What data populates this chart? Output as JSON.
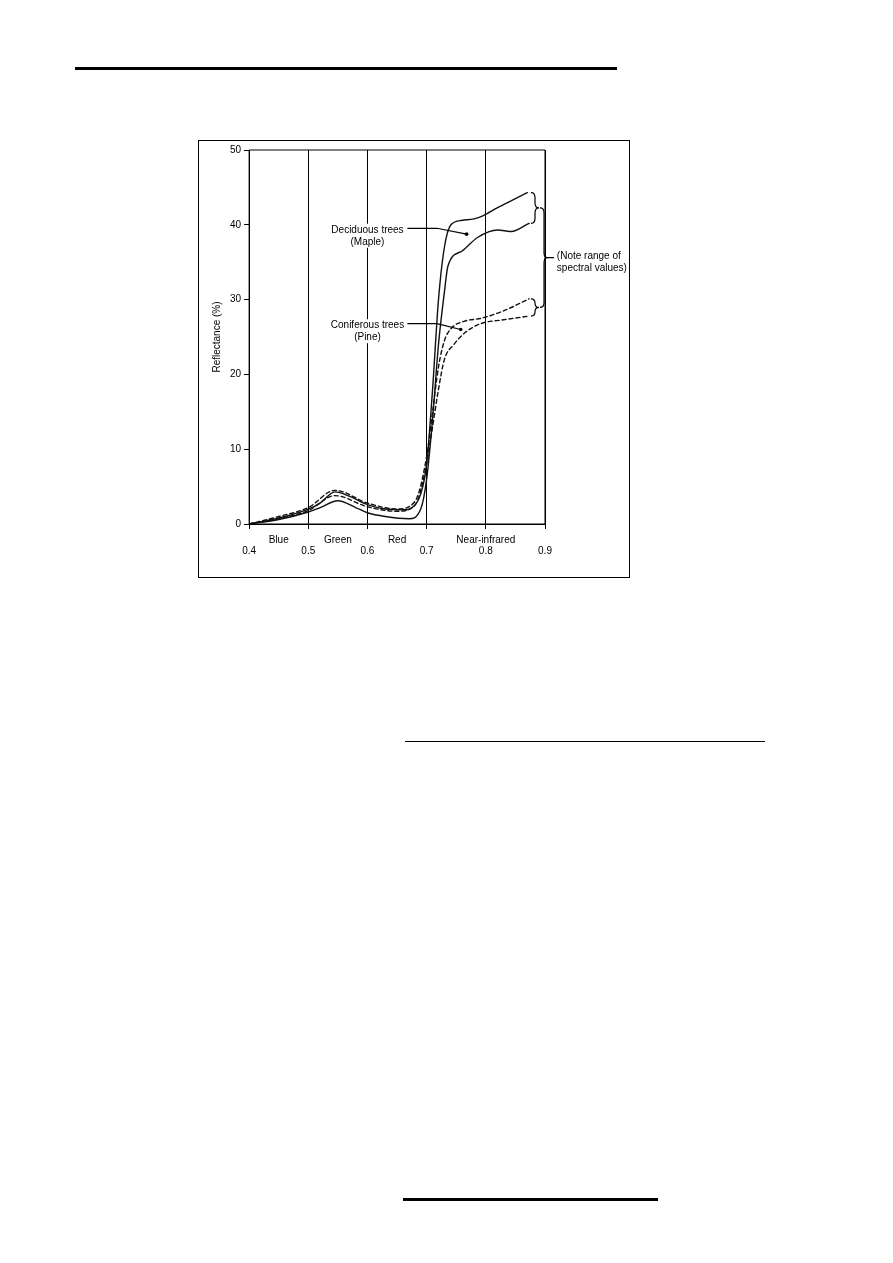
{
  "chart_data": {
    "type": "line",
    "ylabel": "Reflectance (%)",
    "xlim": [
      0.4,
      0.9
    ],
    "xticks": [
      0.4,
      0.5,
      0.6,
      0.7,
      0.8,
      0.9
    ],
    "ylim": [
      0,
      50
    ],
    "yticks": [
      0,
      10,
      20,
      30,
      40,
      50
    ],
    "grid": "x",
    "marker": "none",
    "annotations": [
      "Deciduous trees\n(Maple)",
      "Coniferous trees\n(Pine)",
      "(Note range of\nspectral values)",
      "Blue",
      "Green",
      "Red",
      "Near-infrared"
    ],
    "series": [
      {
        "color": "#111111",
        "line_style": "solid",
        "x": [
          0.4,
          0.45,
          0.5,
          0.52,
          0.545,
          0.57,
          0.6,
          0.63,
          0.66,
          0.68,
          0.69,
          0.7,
          0.71,
          0.72,
          0.73,
          0.741,
          0.76,
          0.78,
          0.795,
          0.82,
          0.845,
          0.87
        ],
        "values": [
          0,
          0.8,
          2,
          2.8,
          4.3,
          3.7,
          2.6,
          2,
          1.9,
          2.5,
          4,
          8,
          18,
          30,
          37,
          40,
          40.6,
          40.8,
          41.2,
          42.3,
          43.3,
          44.3
        ]
      },
      {
        "color": "#111111",
        "line_style": "solid",
        "x": [
          0.4,
          0.45,
          0.5,
          0.52,
          0.55,
          0.58,
          0.6,
          0.63,
          0.67,
          0.69,
          0.7,
          0.71,
          0.72,
          0.73,
          0.736,
          0.76,
          0.786,
          0.82,
          0.843,
          0.873
        ],
        "values": [
          0,
          0.6,
          1.6,
          2.2,
          3.1,
          2.2,
          1.5,
          1,
          0.7,
          2,
          6,
          14,
          24,
          31,
          34.5,
          36.5,
          38.3,
          39.3,
          39.1,
          40.2
        ]
      },
      {
        "color": "#111111",
        "line_style": "dashed",
        "x": [
          0.4,
          0.45,
          0.5,
          0.545,
          0.6,
          0.65,
          0.68,
          0.7,
          0.71,
          0.72,
          0.73,
          0.741,
          0.763,
          0.792,
          0.83,
          0.873
        ],
        "values": [
          0,
          1,
          2.2,
          4.5,
          2.8,
          2,
          3,
          9,
          15,
          21,
          24.5,
          26.1,
          27.1,
          27.5,
          28.5,
          30.1
        ]
      },
      {
        "color": "#111111",
        "line_style": "dashed",
        "x": [
          0.4,
          0.45,
          0.5,
          0.545,
          0.6,
          0.65,
          0.68,
          0.7,
          0.71,
          0.72,
          0.73,
          0.746,
          0.765,
          0.792,
          0.83,
          0.873
        ],
        "values": [
          0,
          0.7,
          1.8,
          3.8,
          2.3,
          1.7,
          2.5,
          8,
          13,
          18,
          22,
          24,
          25.6,
          26.8,
          27.3,
          27.8
        ]
      }
    ]
  }
}
